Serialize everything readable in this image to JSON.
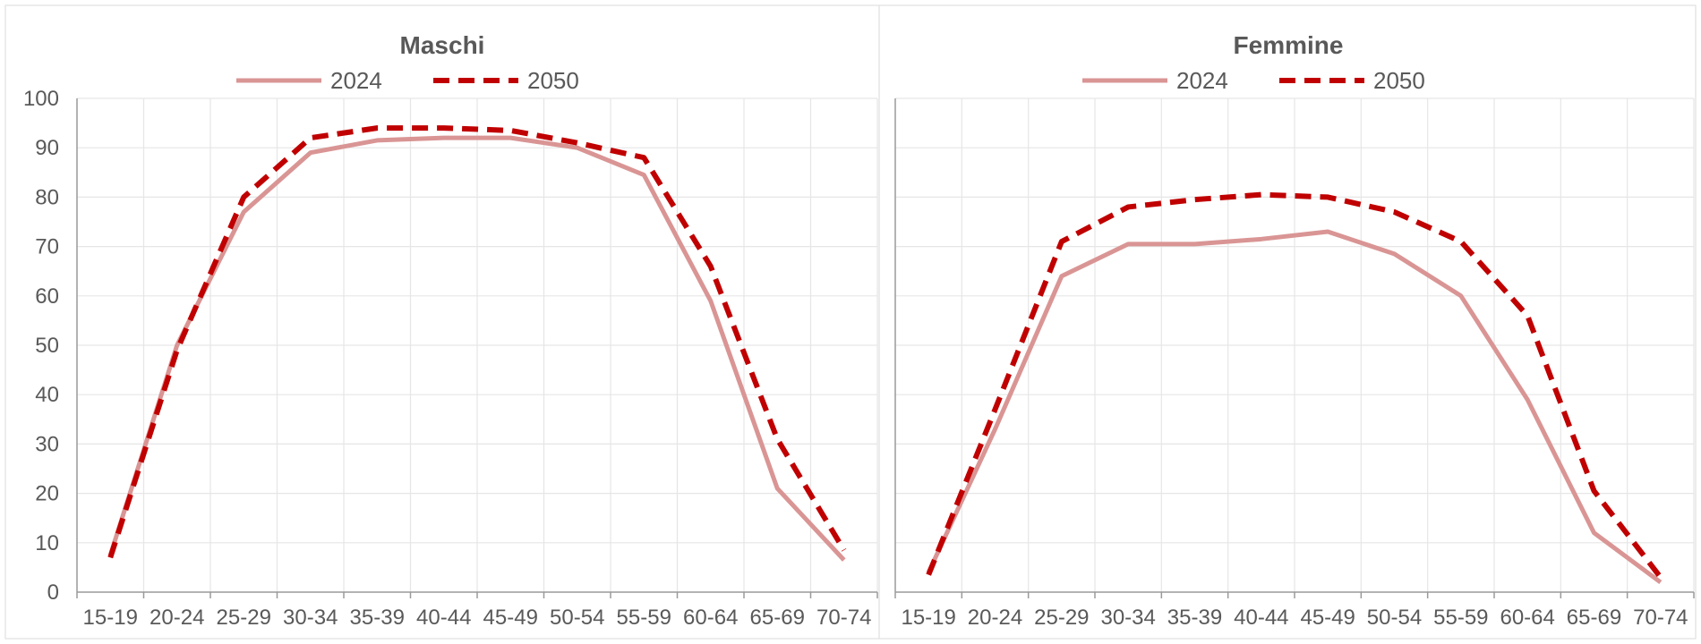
{
  "chart_data": [
    {
      "type": "line",
      "title": "Maschi",
      "categories": [
        "15-19",
        "20-24",
        "25-29",
        "30-34",
        "35-39",
        "40-44",
        "45-49",
        "50-54",
        "55-59",
        "60-64",
        "65-69",
        "70-74"
      ],
      "series": [
        {
          "name": "2024",
          "values": [
            7.5,
            50,
            77,
            89,
            91.5,
            92,
            92,
            90,
            84.5,
            59,
            21,
            6.5
          ],
          "color": "#d99594",
          "dash": "solid"
        },
        {
          "name": "2050",
          "values": [
            7,
            49,
            80,
            92,
            94,
            94,
            93.5,
            91,
            88,
            66,
            31,
            8.5
          ],
          "color": "#c00000",
          "dash": "dashed"
        }
      ],
      "ylim": [
        0,
        100
      ],
      "yticks": [
        0,
        10,
        20,
        30,
        40,
        50,
        60,
        70,
        80,
        90,
        100
      ],
      "show_yticks": true,
      "grid": true,
      "legend": "top"
    },
    {
      "type": "line",
      "title": "Femmine",
      "categories": [
        "15-19",
        "20-24",
        "25-29",
        "30-34",
        "35-39",
        "40-44",
        "45-49",
        "50-54",
        "55-59",
        "60-64",
        "65-69",
        "70-74"
      ],
      "series": [
        {
          "name": "2024",
          "values": [
            4,
            33,
            64,
            70.5,
            70.5,
            71.5,
            73,
            68.5,
            60,
            39,
            12,
            2
          ],
          "color": "#d99594",
          "dash": "solid"
        },
        {
          "name": "2050",
          "values": [
            3.5,
            37,
            71,
            78,
            79.5,
            80.5,
            80,
            77,
            71,
            56,
            20.5,
            3
          ],
          "color": "#c00000",
          "dash": "dashed"
        }
      ],
      "ylim": [
        0,
        100
      ],
      "yticks": [
        0,
        10,
        20,
        30,
        40,
        50,
        60,
        70,
        80,
        90,
        100
      ],
      "show_yticks": false,
      "grid": true,
      "legend": "top"
    }
  ]
}
